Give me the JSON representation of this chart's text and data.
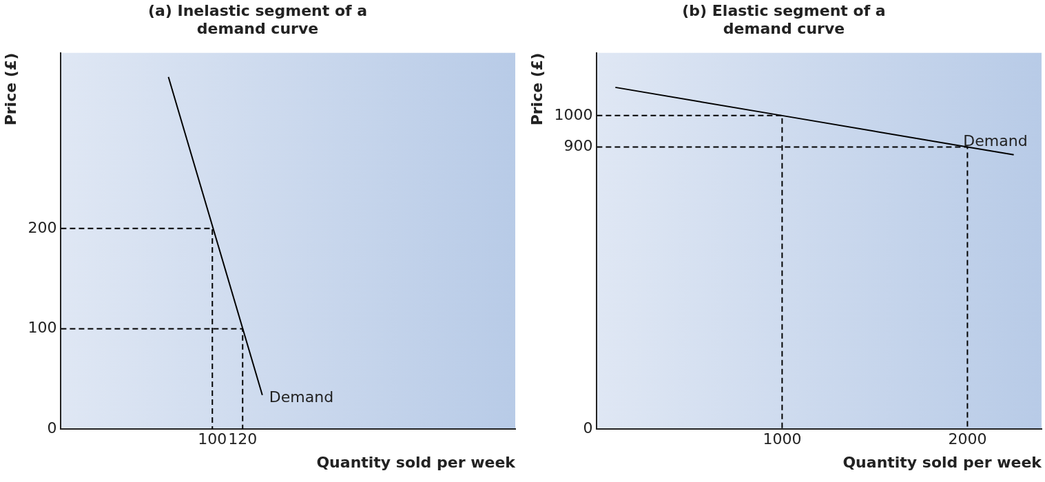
{
  "chart_data": [
    {
      "type": "line",
      "title": "(a) Inelastic segment of a demand curve",
      "xlabel": "Quantity sold per week",
      "ylabel": "Price (£)",
      "xlim": [
        0,
        300
      ],
      "ylim": [
        0,
        375
      ],
      "xticks": [
        100,
        120
      ],
      "yticks": [
        0,
        100,
        200
      ],
      "series": [
        {
          "color": "#000000",
          "line_style": "solid",
          "x": [
            71,
            133
          ],
          "values": [
            351,
            34
          ]
        },
        {
          "color": "#000000",
          "line_style": "dashed",
          "x": [
            0,
            100,
            100
          ],
          "values": [
            200,
            200,
            0
          ]
        },
        {
          "color": "#000000",
          "line_style": "dashed",
          "x": [
            0,
            120,
            120
          ],
          "values": [
            100,
            100,
            0
          ]
        }
      ],
      "annotations": [
        {
          "text": "Demand",
          "x": 133,
          "y": 34
        }
      ]
    },
    {
      "type": "line",
      "title": "(b) Elastic segment of a demand curve",
      "xlabel": "Quantity sold per week",
      "ylabel": "Price (£)",
      "xlim": [
        0,
        2400
      ],
      "ylim": [
        0,
        1200
      ],
      "xticks": [
        1000,
        2000
      ],
      "yticks": [
        0,
        900,
        1000
      ],
      "series": [
        {
          "color": "#000000",
          "line_style": "solid",
          "x": [
            100,
            1000,
            2000,
            2250
          ],
          "values": [
            1090,
            1000,
            900,
            875
          ]
        },
        {
          "color": "#000000",
          "line_style": "dashed",
          "x": [
            0,
            1000,
            1000
          ],
          "values": [
            1000,
            1000,
            0
          ]
        },
        {
          "color": "#000000",
          "line_style": "dashed",
          "x": [
            0,
            2000,
            2000
          ],
          "values": [
            900,
            900,
            0
          ]
        }
      ],
      "annotations": [
        {
          "text": "Demand",
          "x": 2250,
          "y": 875
        }
      ]
    }
  ]
}
